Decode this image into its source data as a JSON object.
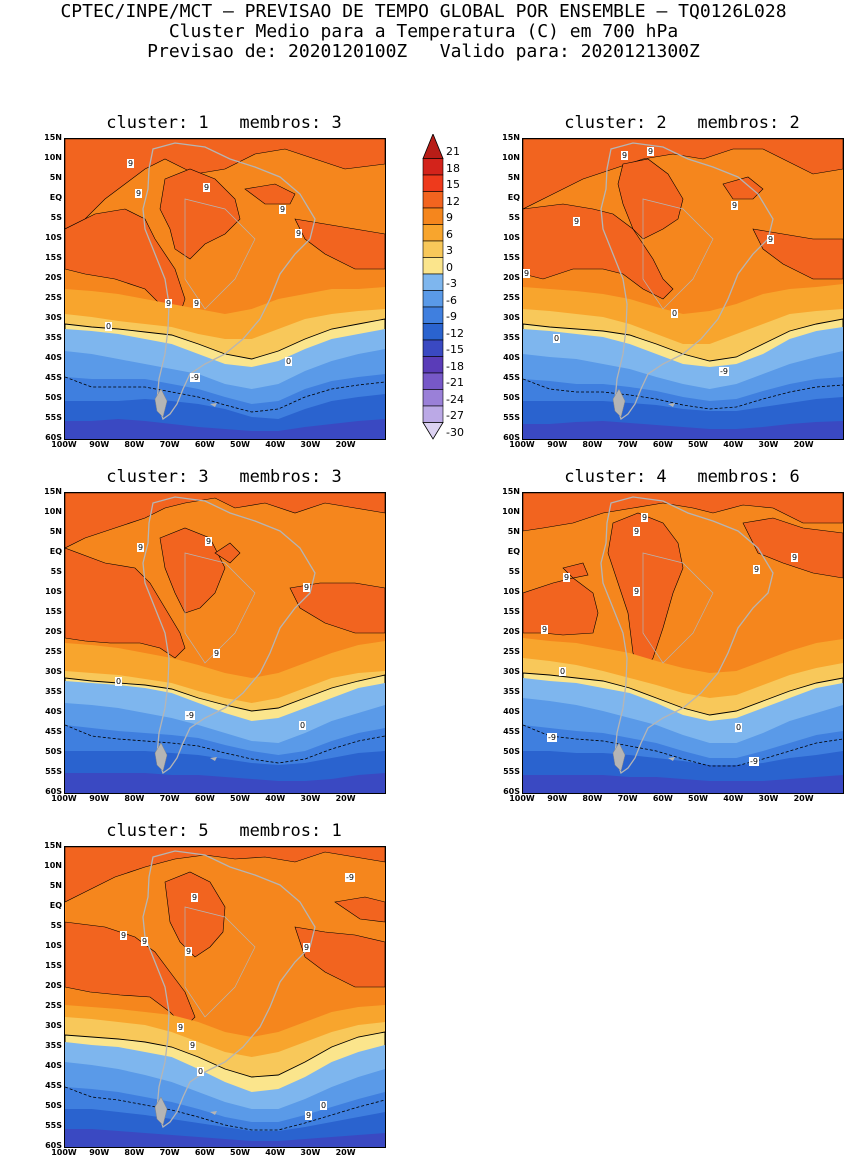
{
  "header": {
    "line1": "CPTEC/INPE/MCT — PREVISAO DE TEMPO GLOBAL POR ENSEMBLE — TQ0126L028",
    "line2": "Cluster Medio para a Temperatura (C) em 700 hPa",
    "line3": "Previsao de: 2020120100Z   Valido para: 2020121300Z"
  },
  "panels": [
    {
      "title": "cluster: 1   membros: 3"
    },
    {
      "title": "cluster: 2   membros: 2"
    },
    {
      "title": "cluster: 3   membros: 3"
    },
    {
      "title": "cluster: 4   membros: 6"
    },
    {
      "title": "cluster: 5   membros: 1"
    }
  ],
  "lat_labels": [
    "15N",
    "10N",
    "5N",
    "EQ",
    "5S",
    "10S",
    "15S",
    "20S",
    "25S",
    "30S",
    "35S",
    "40S",
    "45S",
    "50S",
    "55S",
    "60S"
  ],
  "lon_labels": [
    "100W",
    "90W",
    "80W",
    "70W",
    "60W",
    "50W",
    "40W",
    "30W",
    "20W"
  ],
  "colorbar": {
    "levels": [
      "21",
      "18",
      "15",
      "12",
      "9",
      "6",
      "3",
      "0",
      "-3",
      "-6",
      "-9",
      "-12",
      "-15",
      "-18",
      "-21",
      "-24",
      "-27",
      "-30"
    ],
    "colors": [
      "#b81d17",
      "#d3231b",
      "#ee3a1c",
      "#f2641f",
      "#f5861d",
      "#f8a52d",
      "#f8c85a",
      "#fbe58c",
      "#7eb6ee",
      "#5a9ae8",
      "#3f7fdf",
      "#2a63cf",
      "#3a49c2",
      "#5a3cb8",
      "#7758c8",
      "#9a80d8",
      "#bba9e6",
      "#dcd2f2"
    ]
  },
  "contour_labels": {
    "p1": [
      "9",
      "9",
      "9",
      "9",
      "9",
      "9",
      "9",
      "0",
      "0",
      "-9"
    ],
    "p2": [
      "9",
      "9",
      "9",
      "9",
      "9",
      "9",
      "0",
      "0",
      "-9"
    ],
    "p3": [
      "9",
      "9",
      "9",
      "9",
      "0",
      "0",
      "-9"
    ],
    "p4": [
      "9",
      "9",
      "9",
      "9",
      "9",
      "9",
      "9",
      "0",
      "0",
      "-9",
      "-9"
    ],
    "p5": [
      "9",
      "9",
      "9",
      "9",
      "9",
      "9",
      "0",
      "0",
      "-9",
      "9",
      "9"
    ]
  },
  "fill_colors": {
    "c12": "#f2641f",
    "c9": "#f5861d",
    "c6": "#f8a52d",
    "c3": "#f8c85a",
    "c0": "#fbe58c",
    "m3": "#7eb6ee",
    "m6": "#5a9ae8",
    "m9": "#3f7fdf",
    "m12": "#2a63cf",
    "m15": "#3a49c2",
    "m18": "#5a3cb8",
    "land": "#b5b5b5"
  }
}
